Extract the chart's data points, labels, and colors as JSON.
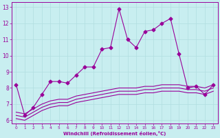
{
  "title": "",
  "xlabel": "Windchill (Refroidissement éolien,°C)",
  "bg_color": "#c8eef0",
  "line_color": "#990099",
  "grid_color": "#b0dde0",
  "xlim": [
    -0.5,
    23.5
  ],
  "ylim": [
    5.8,
    13.3
  ],
  "yticks": [
    6,
    7,
    8,
    9,
    10,
    11,
    12,
    13
  ],
  "xticks": [
    0,
    1,
    2,
    3,
    4,
    5,
    6,
    7,
    8,
    9,
    10,
    11,
    12,
    13,
    14,
    15,
    16,
    17,
    18,
    19,
    20,
    21,
    22,
    23
  ],
  "series": [
    {
      "x": [
        0,
        1,
        2,
        3,
        4,
        5,
        6,
        7,
        8,
        9,
        10,
        11,
        12,
        13,
        14,
        15,
        16,
        17,
        18,
        19,
        20,
        21,
        22,
        23
      ],
      "y": [
        8.2,
        6.3,
        6.8,
        7.6,
        8.4,
        8.4,
        8.3,
        8.8,
        9.3,
        9.3,
        10.4,
        10.5,
        12.9,
        11.0,
        10.5,
        11.5,
        11.6,
        12.0,
        12.3,
        10.1,
        8.0,
        8.1,
        7.6,
        8.2
      ],
      "marker": "D",
      "markersize": 2.5,
      "linewidth": 0.8,
      "zorder": 4
    },
    {
      "x": [
        0,
        1,
        2,
        3,
        4,
        5,
        6,
        7,
        8,
        9,
        10,
        11,
        12,
        13,
        14,
        15,
        16,
        17,
        18,
        19,
        20,
        21,
        22,
        23
      ],
      "y": [
        6.5,
        6.4,
        6.7,
        7.0,
        7.2,
        7.3,
        7.3,
        7.5,
        7.6,
        7.7,
        7.8,
        7.9,
        8.0,
        8.0,
        8.0,
        8.1,
        8.1,
        8.2,
        8.2,
        8.2,
        8.1,
        8.1,
        8.0,
        8.2
      ],
      "marker": null,
      "markersize": 0,
      "linewidth": 0.8,
      "zorder": 2
    },
    {
      "x": [
        0,
        1,
        2,
        3,
        4,
        5,
        6,
        7,
        8,
        9,
        10,
        11,
        12,
        13,
        14,
        15,
        16,
        17,
        18,
        19,
        20,
        21,
        22,
        23
      ],
      "y": [
        6.3,
        6.2,
        6.5,
        6.8,
        7.0,
        7.1,
        7.1,
        7.3,
        7.4,
        7.5,
        7.6,
        7.7,
        7.8,
        7.8,
        7.8,
        7.9,
        7.9,
        8.0,
        8.0,
        8.0,
        7.9,
        7.9,
        7.8,
        8.0
      ],
      "marker": null,
      "markersize": 0,
      "linewidth": 0.8,
      "zorder": 2
    },
    {
      "x": [
        0,
        1,
        2,
        3,
        4,
        5,
        6,
        7,
        8,
        9,
        10,
        11,
        12,
        13,
        14,
        15,
        16,
        17,
        18,
        19,
        20,
        21,
        22,
        23
      ],
      "y": [
        6.1,
        6.0,
        6.3,
        6.6,
        6.8,
        6.9,
        6.9,
        7.1,
        7.2,
        7.3,
        7.4,
        7.5,
        7.6,
        7.6,
        7.6,
        7.7,
        7.7,
        7.8,
        7.8,
        7.8,
        7.7,
        7.7,
        7.6,
        7.8
      ],
      "marker": null,
      "markersize": 0,
      "linewidth": 0.8,
      "zorder": 2
    }
  ]
}
